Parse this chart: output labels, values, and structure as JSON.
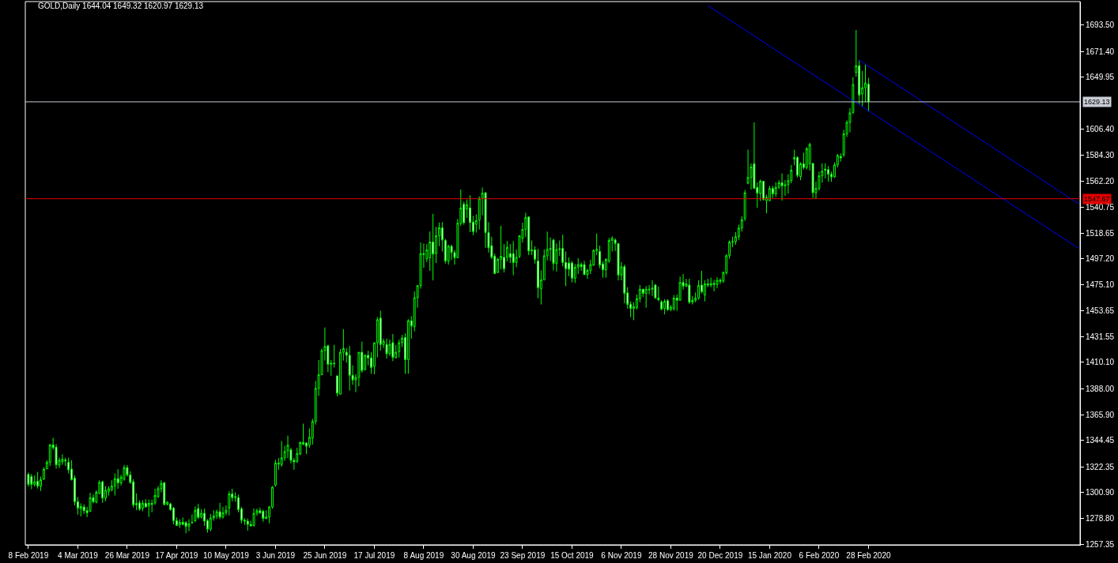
{
  "chart_data": {
    "type": "candlestick",
    "title": "GOLD,Daily 1644.04 1649.32 1620.97 1629.13",
    "color": "#00ff00",
    "categories": [
      "8 Feb 2019",
      null,
      null,
      null,
      null,
      null,
      null,
      null,
      null,
      null,
      null,
      null,
      null,
      null,
      null,
      null,
      "4 Mar 2019",
      null,
      null,
      null,
      null,
      null,
      null,
      null,
      null,
      null,
      null,
      null,
      null,
      null,
      null,
      null,
      "26 Mar 2019",
      null,
      null,
      null,
      null,
      null,
      null,
      null,
      null,
      null,
      null,
      null,
      null,
      null,
      null,
      null,
      "17 Apr 2019",
      null,
      null,
      null,
      null,
      null,
      null,
      null,
      null,
      null,
      null,
      null,
      null,
      null,
      null,
      null,
      "10 May 2019",
      null,
      null,
      null,
      null,
      null,
      null,
      null,
      null,
      null,
      null,
      null,
      null,
      null,
      null,
      null,
      "3 Jun 2019",
      null,
      null,
      null,
      null,
      null,
      null,
      null,
      null,
      null,
      null,
      null,
      null,
      null,
      null,
      null,
      "25 Jun 2019",
      null,
      null,
      null,
      null,
      null,
      null,
      null,
      null,
      null,
      null,
      null,
      null,
      null,
      null,
      null,
      "17 Jul 2019",
      null,
      null,
      null,
      null,
      null,
      null,
      null,
      null,
      null,
      null,
      null,
      null,
      null,
      null,
      null,
      "8 Aug 2019",
      null,
      null,
      null,
      null,
      null,
      null,
      null,
      null,
      null,
      null,
      null,
      null,
      null,
      null,
      null,
      "30 Aug 2019",
      null,
      null,
      null,
      null,
      null,
      null,
      null,
      null,
      null,
      null,
      null,
      null,
      null,
      null,
      null,
      "23 Sep 2019",
      null,
      null,
      null,
      null,
      null,
      null,
      null,
      null,
      null,
      null,
      null,
      null,
      null,
      null,
      null,
      "15 Oct 2019",
      null,
      null,
      null,
      null,
      null,
      null,
      null,
      null,
      null,
      null,
      null,
      null,
      null,
      null,
      null,
      "6 Nov 2019",
      null,
      null,
      null,
      null,
      null,
      null,
      null,
      null,
      null,
      null,
      null,
      null,
      null,
      null,
      null,
      "28 Nov 2019",
      null,
      null,
      null,
      null,
      null,
      null,
      null,
      null,
      null,
      null,
      null,
      null,
      null,
      null,
      null,
      "20 Dec 2019",
      null,
      null,
      null,
      null,
      null,
      null,
      null,
      null,
      null,
      null,
      null,
      null,
      null,
      null,
      null,
      "15 Jan 2020",
      null,
      null,
      null,
      null,
      null,
      null,
      null,
      null,
      null,
      null,
      null,
      null,
      null,
      null,
      null,
      "6 Feb 2020",
      null,
      null,
      null,
      null,
      null,
      null,
      null,
      null,
      null,
      null,
      null,
      null,
      null,
      null,
      null,
      "28 Feb 2020",
      null,
      null,
      null,
      null,
      null,
      null,
      null,
      null,
      null,
      null,
      null,
      null,
      null,
      null,
      null,
      null,
      null,
      null,
      null,
      null,
      null,
      null,
      null,
      null,
      null,
      null,
      null,
      null,
      null,
      null,
      null,
      null,
      null,
      null,
      null,
      null,
      null,
      null,
      null,
      null,
      null,
      null,
      null,
      null,
      null,
      null,
      null,
      null,
      null,
      null,
      null,
      null,
      null,
      null,
      null,
      null,
      null,
      null,
      null,
      null,
      null,
      null,
      null,
      null,
      null,
      null,
      null,
      null
    ],
    "ohlc": [
      [
        1315.9,
        1317.5,
        1305.5,
        1307.5
      ],
      [
        1314.1,
        1316.3,
        1303.5,
        1307.5
      ],
      [
        1307.5,
        1315,
        1305.7,
        1309.7
      ],
      [
        1310.1,
        1318,
        1304,
        1306.1
      ],
      [
        1306.1,
        1314,
        1302,
        1311.4
      ],
      [
        1311.9,
        1321.8,
        1311.4,
        1320.3
      ],
      [
        1320.7,
        1327.8,
        1320.3,
        1326
      ],
      [
        1326,
        1341.7,
        1322.9,
        1340.6
      ],
      [
        1340.6,
        1346.7,
        1336.6,
        1338.4
      ],
      [
        1338.8,
        1341.4,
        1320.7,
        1324
      ],
      [
        1323.8,
        1330,
        1321.1,
        1327.8
      ],
      [
        1326.4,
        1332.8,
        1324,
        1328.6
      ],
      [
        1328,
        1330,
        1322.9,
        1327.3
      ],
      [
        1326,
        1330,
        1316.7,
        1319.8
      ],
      [
        1320.3,
        1327.8,
        1310.8,
        1311.4
      ],
      [
        1312.8,
        1315,
        1289.8,
        1292.9
      ],
      [
        1292.9,
        1296.9,
        1282.1,
        1287.6
      ],
      [
        1287,
        1291.6,
        1280.6,
        1288.9
      ],
      [
        1288.5,
        1290.7,
        1282.8,
        1285.4
      ],
      [
        1285.4,
        1288.7,
        1279.9,
        1283.6
      ],
      [
        1285,
        1300.4,
        1284.3,
        1296.4
      ],
      [
        1296.4,
        1299.1,
        1291.6,
        1292.9
      ],
      [
        1292.5,
        1302.6,
        1291.6,
        1300.9
      ],
      [
        1300,
        1311,
        1299.1,
        1309.2
      ],
      [
        1309.7,
        1310.6,
        1292,
        1296
      ],
      [
        1296,
        1306.1,
        1293.4,
        1302.6
      ],
      [
        1301.7,
        1306.1,
        1298.2,
        1303.9
      ],
      [
        1303,
        1311,
        1301.7,
        1306.1
      ],
      [
        1306.1,
        1316.7,
        1298.2,
        1312.3
      ],
      [
        1312.3,
        1320.3,
        1303.9,
        1308.8
      ],
      [
        1308.8,
        1315.8,
        1306.6,
        1313.6
      ],
      [
        1311.9,
        1323.8,
        1310.6,
        1321.6
      ],
      [
        1321.6,
        1323.8,
        1314.1,
        1315.4
      ],
      [
        1315.4,
        1318.5,
        1307.9,
        1309.2
      ],
      [
        1309.7,
        1311.9,
        1288,
        1290.3
      ],
      [
        1290.3,
        1300,
        1285.8,
        1291.6
      ],
      [
        1292,
        1294.2,
        1285.4,
        1286.7
      ],
      [
        1287.6,
        1294.2,
        1285,
        1291.6
      ],
      [
        1291.6,
        1295.1,
        1288,
        1288.5
      ],
      [
        1289.4,
        1294.7,
        1280.1,
        1291.6
      ],
      [
        1291.6,
        1294.7,
        1284.1,
        1290.7
      ],
      [
        1292,
        1303.9,
        1290.3,
        1298.2
      ],
      [
        1297.3,
        1306.1,
        1296,
        1303.9
      ],
      [
        1303.9,
        1311,
        1300.9,
        1308.4
      ],
      [
        1308.8,
        1309.7,
        1289.8,
        1290.7
      ],
      [
        1290.7,
        1293.4,
        1289.8,
        1292.5
      ],
      [
        1291.1,
        1292,
        1285.4,
        1286.3
      ],
      [
        1287.6,
        1288.5,
        1273.9,
        1277
      ],
      [
        1277,
        1279.7,
        1272.6,
        1273
      ],
      [
        1273.5,
        1278.3,
        1270.9,
        1275.7
      ],
      [
        1275.7,
        1279.7,
        1273,
        1273.9
      ],
      [
        1275.3,
        1276.6,
        1266.4,
        1272.2
      ],
      [
        1272.2,
        1278.3,
        1268.2,
        1274.4
      ],
      [
        1275.3,
        1282.3,
        1274.4,
        1275.5
      ],
      [
        1277,
        1288.9,
        1275.7,
        1285.8
      ],
      [
        1287.2,
        1291.1,
        1278.3,
        1279.7
      ],
      [
        1280.1,
        1286.7,
        1278.8,
        1283.2
      ],
      [
        1283.2,
        1287.2,
        1272.6,
        1276.6
      ],
      [
        1277,
        1278.3,
        1266.9,
        1269.9
      ],
      [
        1269.9,
        1282.7,
        1268.2,
        1279.2
      ],
      [
        1279.2,
        1285.8,
        1277,
        1281
      ],
      [
        1281,
        1286.3,
        1278.3,
        1284.5
      ],
      [
        1284.5,
        1292,
        1278.3,
        1280.1
      ],
      [
        1280.1,
        1288.5,
        1278.8,
        1283.6
      ],
      [
        1283.6,
        1289.8,
        1281.4,
        1285.8
      ],
      [
        1287.6,
        1301.7,
        1281.4,
        1299.5
      ],
      [
        1299.5,
        1303.9,
        1293.3,
        1296.4
      ],
      [
        1296.4,
        1300.8,
        1292.9,
        1297.3
      ],
      [
        1296.4,
        1299,
        1284,
        1286.3
      ],
      [
        1287,
        1288.5,
        1274.8,
        1277.4
      ],
      [
        1277.4,
        1279.2,
        1273.5,
        1276.6
      ],
      [
        1276.6,
        1278.8,
        1268.6,
        1273.9
      ],
      [
        1273.9,
        1277,
        1272.1,
        1272.6
      ],
      [
        1273,
        1287.2,
        1272.1,
        1283.2
      ],
      [
        1283.2,
        1287.2,
        1281,
        1285.4
      ],
      [
        1285.4,
        1288,
        1282.7,
        1283.6
      ],
      [
        1284.9,
        1286.3,
        1276.1,
        1278.8
      ],
      [
        1278.8,
        1285.8,
        1278.3,
        1280.1
      ],
      [
        1280.1,
        1289.4,
        1274.8,
        1288.5
      ],
      [
        1288.5,
        1306.1,
        1287.1,
        1305.2
      ],
      [
        1306.9,
        1328.2,
        1305.7,
        1325.5
      ],
      [
        1325.5,
        1329.5,
        1319.8,
        1324.6
      ],
      [
        1324.2,
        1344,
        1322.4,
        1329.9
      ],
      [
        1329.9,
        1340,
        1327.3,
        1335.2
      ],
      [
        1335.6,
        1348.5,
        1329.5,
        1340.5
      ],
      [
        1336.5,
        1338.3,
        1325.1,
        1327.7
      ],
      [
        1327.7,
        1329.9,
        1319.8,
        1326.4
      ],
      [
        1326.8,
        1338.3,
        1325.5,
        1333.5
      ],
      [
        1333,
        1343.6,
        1332.1,
        1342.7
      ],
      [
        1342.7,
        1358.6,
        1340.5,
        1341.4
      ],
      [
        1342.3,
        1343.1,
        1333,
        1339.6
      ],
      [
        1340.5,
        1354.6,
        1338.3,
        1347.1
      ],
      [
        1346.3,
        1362.6,
        1341,
        1360.4
      ],
      [
        1360.4,
        1394.4,
        1357.8,
        1388.2
      ],
      [
        1388.2,
        1412,
        1382,
        1399.7
      ],
      [
        1399.7,
        1421.7,
        1399.7,
        1420
      ],
      [
        1420,
        1439.4,
        1411.6,
        1423.5
      ],
      [
        1424,
        1424.9,
        1401.9,
        1408.5
      ],
      [
        1408.5,
        1412,
        1398.8,
        1409.4
      ],
      [
        1409.4,
        1424.9,
        1405.8,
        1409
      ],
      [
        1398.8,
        1398.8,
        1381.6,
        1384.2
      ],
      [
        1383.3,
        1421.3,
        1383.3,
        1418.6
      ],
      [
        1418.6,
        1438,
        1411.6,
        1421.7
      ],
      [
        1418.6,
        1422.2,
        1409.8,
        1416
      ],
      [
        1416,
        1423.9,
        1386.4,
        1399.2
      ],
      [
        1399.2,
        1407.6,
        1391.3,
        1395.3
      ],
      [
        1395.3,
        1400.1,
        1385.1,
        1397.5
      ],
      [
        1397.5,
        1418.6,
        1390,
        1418.6
      ],
      [
        1418.6,
        1427.5,
        1401.4,
        1403.2
      ],
      [
        1404.1,
        1416.9,
        1403.2,
        1416
      ],
      [
        1416,
        1419.9,
        1407.6,
        1413.8
      ],
      [
        1413.8,
        1418.6,
        1400.5,
        1405.8
      ],
      [
        1406.7,
        1426.6,
        1400.1,
        1426.6
      ],
      [
        1426.6,
        1448.2,
        1414.2,
        1446
      ],
      [
        1447.3,
        1453.5,
        1419.9,
        1425.2
      ],
      [
        1425.2,
        1430.1,
        1422.2,
        1427.9
      ],
      [
        1425.2,
        1430.1,
        1413.3,
        1417.3
      ],
      [
        1417.3,
        1429.2,
        1415.5,
        1425.2
      ],
      [
        1426.6,
        1434,
        1411.1,
        1414.2
      ],
      [
        1414.2,
        1424.7,
        1413.3,
        1418.6
      ],
      [
        1419,
        1429.2,
        1414.2,
        1426.6
      ],
      [
        1426.6,
        1433.2,
        1423,
        1430.5
      ],
      [
        1431,
        1434.5,
        1400.5,
        1412.4
      ],
      [
        1412.4,
        1446.4,
        1400.5,
        1445.1
      ],
      [
        1445.1,
        1449,
        1430.1,
        1440.7
      ],
      [
        1440,
        1469.8,
        1436.2,
        1464.5
      ],
      [
        1464.5,
        1475.1,
        1456.1,
        1474.6
      ],
      [
        1474.6,
        1510.8,
        1472,
        1501.5
      ],
      [
        1501.5,
        1509.9,
        1489.6,
        1500.7
      ],
      [
        1497.1,
        1509.5,
        1494.5,
        1504.6
      ],
      [
        1498,
        1520.1,
        1487,
        1511.3
      ],
      [
        1511.3,
        1535,
        1479,
        1501.1
      ],
      [
        1501.5,
        1524,
        1493.6,
        1516.5
      ],
      [
        1516.5,
        1527.6,
        1507.7,
        1523.2
      ],
      [
        1523.2,
        1528,
        1503.3,
        1513
      ],
      [
        1512.6,
        1513.9,
        1493.2,
        1495.3
      ],
      [
        1495.3,
        1509,
        1492.3,
        1507.7
      ],
      [
        1507.7,
        1509,
        1496.2,
        1502.4
      ],
      [
        1502.4,
        1504.6,
        1492.3,
        1498
      ],
      [
        1498,
        1530.7,
        1498,
        1527.1
      ],
      [
        1527.1,
        1555.4,
        1524.9,
        1539.9
      ],
      [
        1543,
        1545.2,
        1525.8,
        1527.6
      ],
      [
        1539,
        1547,
        1531.5,
        1542.6
      ],
      [
        1539.9,
        1550.5,
        1519.6,
        1527.6
      ],
      [
        1528,
        1533.3,
        1517,
        1520.1
      ],
      [
        1526.2,
        1534.6,
        1519.2,
        1529.3
      ],
      [
        1529.8,
        1549.6,
        1521.8,
        1547.9
      ],
      [
        1547.9,
        1557.1,
        1533.7,
        1552.3
      ],
      [
        1552.7,
        1553.2,
        1506.4,
        1519.2
      ],
      [
        1519.2,
        1528,
        1502.4,
        1506.4
      ],
      [
        1508.2,
        1515.6,
        1497.1,
        1498.4
      ],
      [
        1499.3,
        1501.5,
        1484.3,
        1484.8
      ],
      [
        1485.7,
        1498,
        1485.2,
        1496.7
      ],
      [
        1496.7,
        1524.9,
        1488.3,
        1499.3
      ],
      [
        1498.4,
        1509.5,
        1485.7,
        1488.8
      ],
      [
        1498.4,
        1512.1,
        1494.9,
        1506.8
      ],
      [
        1501.5,
        1509.5,
        1493.6,
        1498.4
      ],
      [
        1501.5,
        1512.1,
        1483.4,
        1494
      ],
      [
        1494,
        1505,
        1490,
        1498.4
      ],
      [
        1499.3,
        1517,
        1497.6,
        1516.5
      ],
      [
        1514.3,
        1527.6,
        1510.8,
        1521.8
      ],
      [
        1521.8,
        1535.9,
        1515.6,
        1532
      ],
      [
        1532.4,
        1532.9,
        1500.2,
        1503.7
      ],
      [
        1503.7,
        1512.6,
        1500.2,
        1504.6
      ],
      [
        1504.6,
        1507.7,
        1493.2,
        1496.7
      ],
      [
        1495.3,
        1505.5,
        1464,
        1472.9
      ],
      [
        1472,
        1487.4,
        1458.8,
        1479.5
      ],
      [
        1479.5,
        1505,
        1479,
        1499.7
      ],
      [
        1499.7,
        1520,
        1495.8,
        1505
      ],
      [
        1505,
        1515.2,
        1495.3,
        1505.9
      ],
      [
        1513,
        1513.9,
        1487.4,
        1493.2
      ],
      [
        1493.2,
        1510,
        1486.5,
        1505
      ],
      [
        1505,
        1512.6,
        1499.7,
        1505.5
      ],
      [
        1505.9,
        1517.4,
        1490.9,
        1494
      ],
      [
        1494,
        1503.3,
        1474.2,
        1488.8
      ],
      [
        1493.6,
        1498.4,
        1482.6,
        1488.3
      ],
      [
        1493.6,
        1495.3,
        1477.3,
        1480.8
      ],
      [
        1480.8,
        1492.7,
        1476.8,
        1490
      ],
      [
        1490,
        1497.6,
        1484.4,
        1492.3
      ],
      [
        1492.3,
        1494,
        1487,
        1490.5
      ],
      [
        1492.3,
        1495.4,
        1483.5,
        1483.9
      ],
      [
        1483.9,
        1488.8,
        1480.4,
        1487.4
      ],
      [
        1487.4,
        1496.3,
        1484.4,
        1492.3
      ],
      [
        1491.9,
        1505.1,
        1491,
        1504.2
      ],
      [
        1504.2,
        1518.4,
        1500.2,
        1505.1
      ],
      [
        1503.3,
        1508.2,
        1489.2,
        1491.9
      ],
      [
        1492.8,
        1495,
        1481.3,
        1487.9
      ],
      [
        1487.9,
        1497.6,
        1481.3,
        1496.7
      ],
      [
        1495.4,
        1514.8,
        1493.6,
        1512.6
      ],
      [
        1512.6,
        1516.1,
        1503.3,
        1514.3
      ],
      [
        1513,
        1514.4,
        1503.8,
        1510
      ],
      [
        1510,
        1510,
        1479,
        1483.5
      ],
      [
        1483.5,
        1494.5,
        1479.1,
        1490.5
      ],
      [
        1490.5,
        1492.3,
        1459.7,
        1468.1
      ],
      [
        1468.5,
        1473.3,
        1455.3,
        1458.8
      ],
      [
        1458.8,
        1461.4,
        1448.2,
        1455.3
      ],
      [
        1455.3,
        1460.6,
        1445.6,
        1457.1
      ],
      [
        1456.1,
        1467.2,
        1454.4,
        1463.6
      ],
      [
        1463.6,
        1475.1,
        1460.6,
        1471.6
      ],
      [
        1471.6,
        1472,
        1465,
        1468.1
      ],
      [
        1468.1,
        1474.2,
        1456.1,
        1471.6
      ],
      [
        1471.6,
        1475.1,
        1467.2,
        1471.2
      ],
      [
        1471.6,
        1479.1,
        1465.9,
        1472.5
      ],
      [
        1475.1,
        1476,
        1463.6,
        1464.1
      ],
      [
        1464.1,
        1473.8,
        1461.4,
        1462.8
      ],
      [
        1461,
        1462.3,
        1453.9,
        1454.8
      ],
      [
        1455.3,
        1463.2,
        1450.4,
        1461.4
      ],
      [
        1461.9,
        1463.2,
        1453.5,
        1454.4
      ],
      [
        1454.4,
        1458.3,
        1453.1,
        1456.6
      ],
      [
        1455.3,
        1466.7,
        1453.5,
        1464.1
      ],
      [
        1464.1,
        1467.2,
        1453.5,
        1462.3
      ],
      [
        1462.3,
        1482.2,
        1461.9,
        1477.3
      ],
      [
        1477.3,
        1484.4,
        1471.2,
        1474.2
      ],
      [
        1474.2,
        1480.4,
        1473.3,
        1476
      ],
      [
        1475.1,
        1480.4,
        1459.2,
        1460.6
      ],
      [
        1460.6,
        1465.9,
        1458.8,
        1462.3
      ],
      [
        1462.3,
        1468.9,
        1460.6,
        1464.1
      ],
      [
        1464.1,
        1479.1,
        1462.8,
        1474.7
      ],
      [
        1475.1,
        1487,
        1468.1,
        1469.4
      ],
      [
        1466.7,
        1479.1,
        1461.4,
        1476
      ],
      [
        1476,
        1480.4,
        1473.3,
        1475.1
      ],
      [
        1475.1,
        1481.3,
        1473.3,
        1476.4
      ],
      [
        1476.4,
        1479.5,
        1469.8,
        1475.6
      ],
      [
        1475.6,
        1481.7,
        1472.4,
        1479.1
      ],
      [
        1479.1,
        1480.8,
        1476,
        1478.3
      ],
      [
        1478.3,
        1486.6,
        1476.9,
        1485.7
      ],
      [
        1485.3,
        1501.1,
        1483.9,
        1499.8
      ],
      [
        1499.8,
        1512.6,
        1497.2,
        1511.3
      ],
      [
        1511.3,
        1515.7,
        1506.9,
        1511.7
      ],
      [
        1511.7,
        1519.7,
        1509,
        1515.7
      ],
      [
        1515.7,
        1526,
        1513,
        1523
      ],
      [
        1523,
        1533,
        1520,
        1530
      ],
      [
        1531,
        1555,
        1529,
        1552.7
      ],
      [
        1560.7,
        1588.9,
        1559.8,
        1565.5
      ],
      [
        1565.5,
        1577.4,
        1555.4,
        1574.4
      ],
      [
        1577,
        1611.9,
        1556,
        1556.3
      ],
      [
        1557.2,
        1561.5,
        1540,
        1552.3
      ],
      [
        1552,
        1563.8,
        1545.7,
        1562.4
      ],
      [
        1562.4,
        1562.4,
        1546.1,
        1547
      ],
      [
        1546.1,
        1551,
        1535.5,
        1548.8
      ],
      [
        1546.1,
        1558.5,
        1545.7,
        1556.3
      ],
      [
        1556.3,
        1558.5,
        1548.3,
        1551.8
      ],
      [
        1551.8,
        1561.5,
        1549.2,
        1557.2
      ],
      [
        1557.2,
        1563.3,
        1555.8,
        1561.1
      ],
      [
        1561.1,
        1569,
        1546.1,
        1558.5
      ],
      [
        1558.5,
        1563.3,
        1550.1,
        1559.4
      ],
      [
        1559.4,
        1568.2,
        1551.9,
        1562.9
      ],
      [
        1562.9,
        1576.1,
        1560.7,
        1571.7
      ],
      [
        1581,
        1588.9,
        1575.7,
        1582.3
      ],
      [
        1582.3,
        1583.6,
        1565.5,
        1567.3
      ],
      [
        1566.3,
        1578.3,
        1563.3,
        1577
      ],
      [
        1577,
        1586.3,
        1572.2,
        1573.9
      ],
      [
        1573.9,
        1591.1,
        1572.2,
        1589.8
      ],
      [
        1577,
        1594.7,
        1571.3,
        1593.3
      ],
      [
        1577.4,
        1577.4,
        1548.3,
        1552.7
      ],
      [
        1552.7,
        1562,
        1547.4,
        1556.3
      ],
      [
        1556.3,
        1570.4,
        1554.5,
        1566.9
      ],
      [
        1566.9,
        1577.4,
        1561.1,
        1570.8
      ],
      [
        1572.6,
        1577.4,
        1564.6,
        1571.7
      ],
      [
        1572.1,
        1575.2,
        1562,
        1568.2
      ],
      [
        1568.2,
        1570.4,
        1562,
        1566
      ],
      [
        1566,
        1578.3,
        1565.1,
        1576.1
      ],
      [
        1576.1,
        1585.4,
        1574,
        1584.1
      ],
      [
        1583.2,
        1585.8,
        1578.8,
        1581.9
      ],
      [
        1584.5,
        1605.7,
        1582.7,
        1602.2
      ],
      [
        1602.2,
        1613.6,
        1599.5,
        1611.9
      ],
      [
        1611.9,
        1623.8,
        1603.5,
        1619.8
      ],
      [
        1620.2,
        1649.8,
        1618.9,
        1643.6
      ],
      [
        1653.8,
        1689.5,
        1650.2,
        1659.5
      ],
      [
        1659.5,
        1663.9,
        1627.3,
        1634.8
      ],
      [
        1635.7,
        1655.1,
        1625.5,
        1641
      ],
      [
        1641,
        1660.4,
        1629.1,
        1644.9
      ],
      [
        1644.04,
        1649.32,
        1620.97,
        1629.13
      ],
      null,
      null,
      null,
      null,
      null,
      null,
      null,
      null,
      null,
      null,
      null,
      null,
      null,
      null,
      null,
      null,
      null,
      null,
      null,
      null,
      null,
      null,
      null,
      null,
      null,
      null,
      null,
      null,
      null,
      null,
      null,
      null,
      null,
      null,
      null,
      null,
      null,
      null,
      null,
      null,
      null,
      null,
      null,
      null,
      null,
      null,
      null,
      null,
      null,
      null,
      null,
      null,
      null,
      null,
      null,
      null,
      null,
      null,
      null,
      null,
      null,
      null,
      null,
      null,
      null,
      null,
      null,
      null
    ],
    "series": [
      {
        "type": "line",
        "color": "#0000ff",
        "values": [
          null,
          null,
          null,
          null,
          null,
          null,
          null,
          null,
          null,
          null,
          null,
          null,
          null,
          null,
          null,
          null,
          null,
          null,
          null,
          null,
          null,
          null,
          null,
          null,
          null,
          null,
          null,
          null,
          null,
          null,
          null,
          null,
          null,
          null,
          null,
          null,
          null,
          null,
          null,
          null,
          null,
          null,
          null,
          null,
          null,
          null,
          null,
          null,
          null,
          null,
          null,
          null,
          null,
          null,
          null,
          null,
          null,
          null,
          null,
          null,
          null,
          null,
          null,
          null,
          null,
          null,
          null,
          null,
          null,
          null,
          null,
          null,
          null,
          null,
          null,
          null,
          null,
          null,
          null,
          null,
          null,
          null,
          null,
          null,
          null,
          null,
          null,
          null,
          null,
          null,
          null,
          null,
          null,
          null,
          null,
          null,
          null,
          null,
          null,
          null,
          null,
          null,
          null,
          null,
          null,
          null,
          null,
          null,
          null,
          null,
          null,
          null,
          null,
          null,
          null,
          null,
          null,
          null,
          null,
          null,
          null,
          null,
          null,
          null,
          null,
          null,
          null,
          null,
          null,
          null,
          null,
          null,
          null,
          null,
          null,
          null,
          null,
          null,
          null,
          null,
          null,
          null,
          null,
          null,
          null,
          null,
          null,
          null,
          null,
          null,
          null,
          null,
          null,
          null,
          null,
          null,
          null,
          null,
          null,
          null,
          null,
          null,
          null,
          null,
          null,
          null,
          null,
          null,
          null,
          null,
          null,
          null,
          null,
          null,
          null,
          null,
          null,
          null,
          null,
          null,
          null,
          null,
          null,
          null,
          null,
          null,
          null,
          null,
          null,
          null,
          null,
          null,
          null,
          null,
          null,
          null,
          null,
          null,
          null,
          null,
          null,
          null,
          null,
          null,
          null,
          null,
          null,
          null,
          null,
          null,
          null,
          null,
          null,
          null,
          null,
          null,
          null,
          null,
          null,
          null,
          1710,
          1708.3,
          1706.6,
          1704.9,
          1703.2,
          1701.5,
          1699.8,
          1698.1,
          1696.4,
          1694.7,
          1693,
          1691.3,
          1689.6,
          1687.9,
          1686.2,
          1684.5,
          1682.8,
          1681.1,
          1679.4,
          1677.7,
          1676,
          1674.3,
          1672.6,
          1670.9,
          1669.2,
          1667.5,
          1665.8,
          1664.1,
          1662.4,
          1660.7,
          1659,
          1657.3,
          1655.6,
          1653.9,
          1652.2,
          1650.5,
          1648.8,
          1647.1,
          1645.4,
          1643.7,
          1642,
          1640.3,
          1638.6,
          1636.9,
          1635.2,
          1633.5,
          1631.8,
          1630.1,
          1628.4,
          1626.7,
          1625,
          1623.3,
          1621.6,
          1619.9,
          1618.2,
          1616.5,
          1614.8,
          1613.1,
          1611.4,
          1609.7,
          1608,
          1606.3,
          1604.6,
          1602.9,
          1601.2,
          1599.5,
          1597.8,
          1596.1,
          1594.4,
          1592.7,
          1591,
          1589.3,
          1587.6,
          1585.9,
          1584.2,
          1582.5,
          1580.8,
          1579.1,
          1577.4,
          1575.7,
          1574,
          1572.3,
          1570.6,
          1568.9,
          1567.2,
          1565.5,
          1563.8,
          1562.1,
          1560.4,
          1558.7,
          1557,
          1555.3,
          1553.6,
          1551.9,
          1550.2,
          1548.5,
          1546.8,
          1545.1,
          1543.4,
          1541.7,
          1540,
          1538.3,
          1536.6,
          1534.9,
          1533.2,
          1531.5,
          1529.8,
          1528.1,
          1526.4,
          1524.7,
          1523,
          1521.3,
          1519.6,
          1517.9,
          1516.2,
          1514.5,
          1512.8,
          1511.1,
          1509.4,
          1507.7,
          1506
        ]
      },
      {
        "type": "line",
        "color": "#0000ff",
        "values": [
          null,
          null,
          null,
          null,
          null,
          null,
          null,
          null,
          null,
          null,
          null,
          null,
          null,
          null,
          null,
          null,
          null,
          null,
          null,
          null,
          null,
          null,
          null,
          null,
          null,
          null,
          null,
          null,
          null,
          null,
          null,
          null,
          null,
          null,
          null,
          null,
          null,
          null,
          null,
          null,
          null,
          null,
          null,
          null,
          null,
          null,
          null,
          null,
          null,
          null,
          null,
          null,
          null,
          null,
          null,
          null,
          null,
          null,
          null,
          null,
          null,
          null,
          null,
          null,
          null,
          null,
          null,
          null,
          null,
          null,
          null,
          null,
          null,
          null,
          null,
          null,
          null,
          null,
          null,
          null,
          null,
          null,
          null,
          null,
          null,
          null,
          null,
          null,
          null,
          null,
          null,
          null,
          null,
          null,
          null,
          null,
          null,
          null,
          null,
          null,
          null,
          null,
          null,
          null,
          null,
          null,
          null,
          null,
          null,
          null,
          null,
          null,
          null,
          null,
          null,
          null,
          null,
          null,
          null,
          null,
          null,
          null,
          null,
          null,
          null,
          null,
          null,
          null,
          null,
          null,
          null,
          null,
          null,
          null,
          null,
          null,
          null,
          null,
          null,
          null,
          null,
          null,
          null,
          null,
          null,
          null,
          null,
          null,
          null,
          null,
          null,
          null,
          null,
          null,
          null,
          null,
          null,
          null,
          null,
          null,
          null,
          null,
          null,
          null,
          null,
          null,
          null,
          null,
          null,
          null,
          null,
          null,
          null,
          null,
          null,
          null,
          null,
          null,
          null,
          null,
          null,
          null,
          null,
          null,
          null,
          null,
          null,
          null,
          null,
          null,
          null,
          null,
          null,
          null,
          null,
          null,
          null,
          null,
          null,
          null,
          null,
          null,
          null,
          null,
          null,
          null,
          null,
          null,
          null,
          null,
          null,
          null,
          null,
          null,
          null,
          null,
          null,
          null,
          null,
          null,
          null,
          null,
          null,
          null,
          null,
          null,
          null,
          null,
          null,
          null,
          null,
          null,
          null,
          null,
          null,
          null,
          null,
          null,
          null,
          null,
          null,
          null,
          null,
          null,
          null,
          null,
          null,
          null,
          null,
          null,
          null,
          null,
          null,
          null,
          null,
          null,
          null,
          null,
          null,
          null,
          null,
          null,
          null,
          null,
          null,
          null,
          null,
          null,
          null,
          1664.2,
          1662.5,
          1660.8,
          1659.1,
          1657.4,
          1655.7,
          1654,
          1652.3,
          1650.6,
          1648.9,
          1647.2,
          1645.5,
          1643.8,
          1642.1,
          1640.4,
          1638.7,
          1637,
          1635.3,
          1633.6,
          1631.9,
          1630.2,
          1628.5,
          1626.8,
          1625.1,
          1623.4,
          1621.7,
          1620,
          1618.3,
          1616.6,
          1614.9,
          1613.2,
          1611.5,
          1609.8,
          1608.1,
          1606.4,
          1604.7,
          1603,
          1601.3,
          1599.6,
          1597.9,
          1596.2,
          1594.5,
          1592.8,
          1591.1,
          1589.4,
          1587.7,
          1586,
          1584.3,
          1582.6,
          1580.9,
          1579.2,
          1577.5,
          1575.8,
          1574.1,
          1572.4,
          1570.7,
          1569,
          1567.3,
          1565.6,
          1563.9,
          1562.2,
          1560.5,
          1558.8,
          1557.1,
          1555.4,
          1553.7,
          1552,
          1550.3,
          1548.6,
          1546.9,
          1545.2,
          1543.5
        ]
      }
    ],
    "ylim": [
      1256.7,
      1713.4
    ],
    "yticks": [
      {
        "value": 1257.35,
        "label": "1257.35"
      },
      {
        "value": 1278.8,
        "label": "1278.80"
      },
      {
        "value": 1300.9,
        "label": "1300.90"
      },
      {
        "value": 1322.35,
        "label": "1322.35"
      },
      {
        "value": 1344.45,
        "label": "1344.45"
      },
      {
        "value": 1365.9,
        "label": "1365.90"
      },
      {
        "value": 1388,
        "label": "1388.00"
      },
      {
        "value": 1410.1,
        "label": "1410.10"
      },
      {
        "value": 1431.55,
        "label": "1431.55"
      },
      {
        "value": 1453.65,
        "label": "1453.65"
      },
      {
        "value": 1475.1,
        "label": "1475.10"
      },
      {
        "value": 1497.2,
        "label": "1497.20"
      },
      {
        "value": 1518.65,
        "label": "1518.65"
      },
      {
        "value": 1540.75,
        "label": "1540.75"
      },
      {
        "value": 1562.2,
        "label": "1562.20"
      },
      {
        "value": 1584.3,
        "label": "1584.30"
      },
      {
        "value": 1606.4,
        "label": "1606.40"
      },
      {
        "value": 1649.95,
        "label": "1649.95"
      },
      {
        "value": 1671.4,
        "label": "1671.40"
      },
      {
        "value": 1693.5,
        "label": "1693.50"
      }
    ],
    "ref_lines": [
      {
        "axis": "y",
        "value": 1629.13,
        "label": "1629.13",
        "color": "#c8ccd4"
      },
      {
        "axis": "y",
        "value": 1547.67,
        "label": "1547.67",
        "color": "#e00000"
      }
    ]
  }
}
